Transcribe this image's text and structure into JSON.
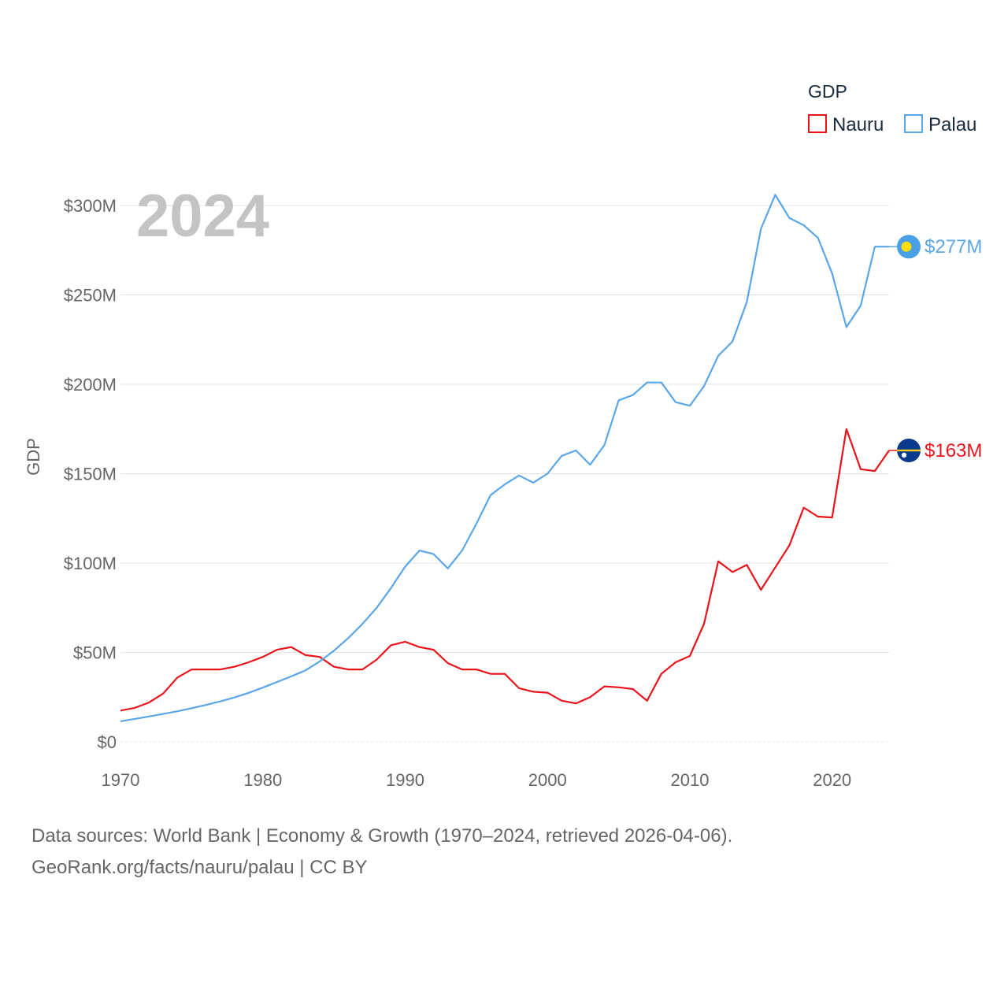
{
  "colors": {
    "nauru": "#e8141c",
    "palau": "#5aa6e6",
    "grid": "#e3e3e3",
    "tick": "#666666"
  },
  "year_label": "2024",
  "legend": {
    "title": "GDP",
    "items": [
      "Nauru",
      "Palau"
    ]
  },
  "source_line1": "Data sources: World Bank | Economy & Growth (1970–2024, retrieved 2026-04-06).",
  "source_line2": "GeoRank.org/facts/nauru/palau | CC BY",
  "chart_data": {
    "type": "line",
    "title": "GDP",
    "xlabel": "",
    "ylabel": "GDP",
    "xlim": [
      1970,
      2024
    ],
    "ylim": [
      0,
      300
    ],
    "y_unit": "million USD",
    "x_ticks": [
      1970,
      1980,
      1990,
      2000,
      2010,
      2020
    ],
    "x_tick_labels": [
      "1970",
      "1980",
      "1990",
      "2000",
      "2010",
      "2020"
    ],
    "y_ticks": [
      0,
      50,
      100,
      150,
      200,
      250,
      300
    ],
    "y_tick_labels": [
      "$0",
      "$50M",
      "$100M",
      "$150M",
      "$200M",
      "$250M",
      "$300M"
    ],
    "x": [
      1970,
      1971,
      1972,
      1973,
      1974,
      1975,
      1976,
      1977,
      1978,
      1979,
      1980,
      1981,
      1982,
      1983,
      1984,
      1985,
      1986,
      1987,
      1988,
      1989,
      1990,
      1991,
      1992,
      1993,
      1994,
      1995,
      1996,
      1997,
      1998,
      1999,
      2000,
      2001,
      2002,
      2003,
      2004,
      2005,
      2006,
      2007,
      2008,
      2009,
      2010,
      2011,
      2012,
      2013,
      2014,
      2015,
      2016,
      2017,
      2018,
      2019,
      2020,
      2021,
      2022,
      2023,
      2024
    ],
    "series": [
      {
        "name": "Nauru",
        "end_label": "$163M",
        "values": [
          17.5,
          19,
          22,
          27,
          36,
          40.5,
          40.5,
          40.5,
          42,
          44.5,
          47.5,
          51.5,
          53,
          48.5,
          47.5,
          42,
          40.5,
          40.5,
          46,
          54,
          56,
          53,
          51.5,
          44,
          40.5,
          40.5,
          38,
          38,
          30,
          28,
          27.5,
          23,
          21.5,
          25,
          31,
          30.5,
          29.5,
          23,
          38,
          44.5,
          48,
          66,
          101,
          95,
          99,
          85,
          97.5,
          110,
          131,
          126,
          125.5,
          175,
          152.5,
          151.5,
          163
        ]
      },
      {
        "name": "Palau",
        "end_label": "$277M",
        "values": [
          11.5,
          12.8,
          14.2,
          15.6,
          17.1,
          18.8,
          20.6,
          22.6,
          24.8,
          27.4,
          30.3,
          33.5,
          36.6,
          40,
          45,
          51,
          58,
          66,
          75,
          86,
          98,
          107,
          105,
          97,
          107,
          122,
          138,
          144,
          149,
          145,
          150,
          160,
          163,
          155,
          166,
          191,
          194,
          201,
          201,
          190,
          188,
          199,
          216,
          224,
          246,
          287,
          306,
          293,
          289,
          282,
          262,
          232,
          244,
          277,
          277
        ]
      }
    ]
  }
}
